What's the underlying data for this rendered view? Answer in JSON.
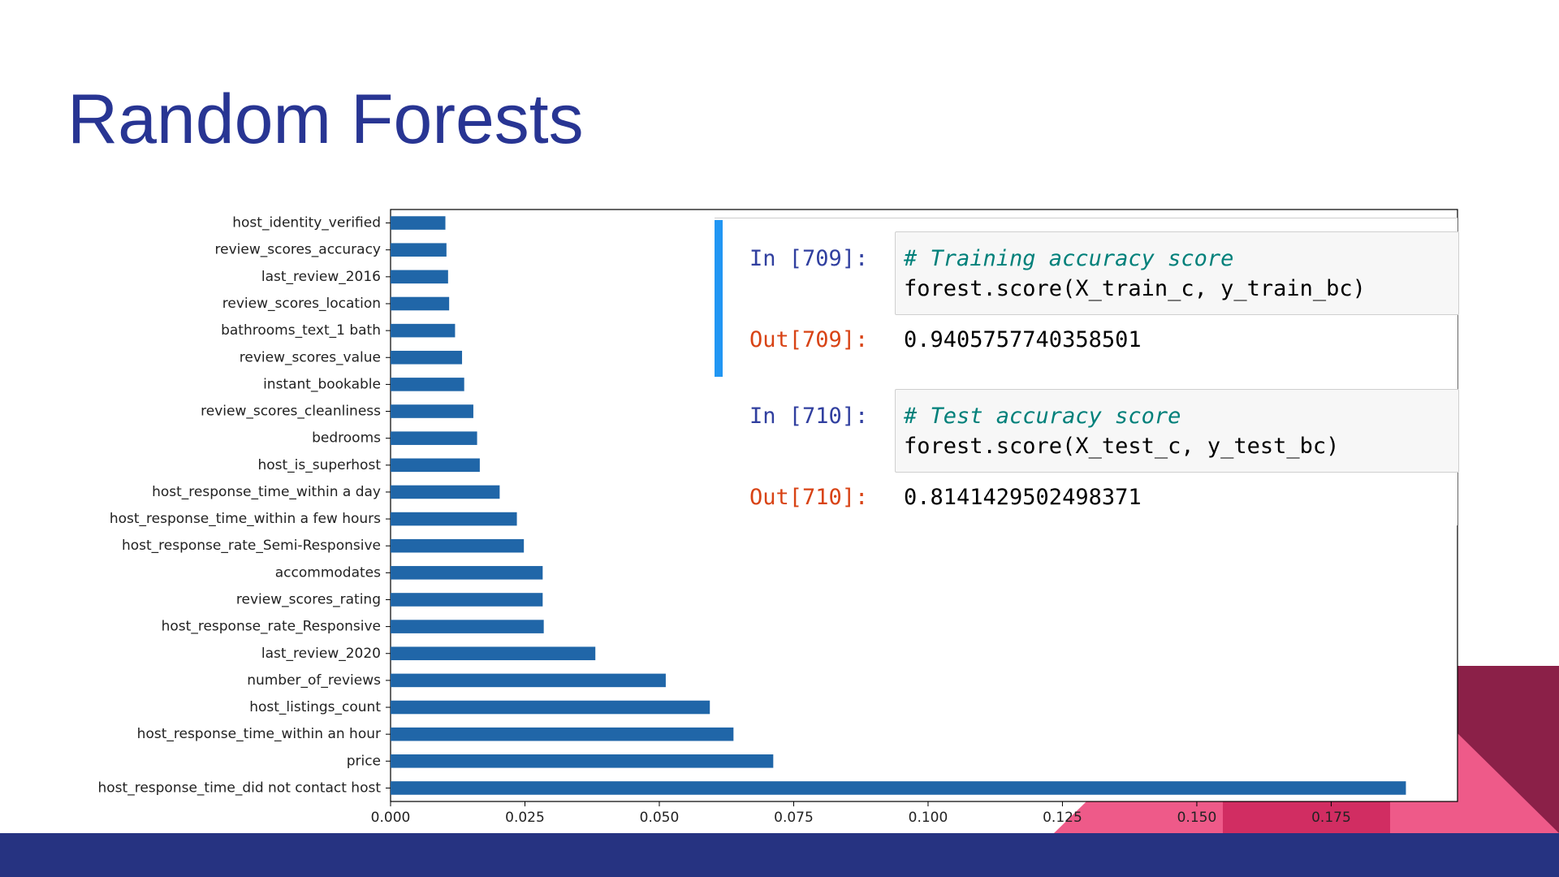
{
  "title": "Random Forests",
  "chart_data": {
    "type": "barh",
    "categories": [
      "host_identity_verified",
      "review_scores_accuracy",
      "last_review_2016",
      "review_scores_location",
      "bathrooms_text_1 bath",
      "review_scores_value",
      "instant_bookable",
      "review_scores_cleanliness",
      "bedrooms",
      "host_is_superhost",
      "host_response_time_within a day",
      "host_response_time_within a few hours",
      "host_response_rate_Semi-Responsive",
      "accommodates",
      "review_scores_rating",
      "host_response_rate_Responsive",
      "last_review_2020",
      "number_of_reviews",
      "host_listings_count",
      "host_response_time_within an hour",
      "price",
      "host_response_time_did not contact host"
    ],
    "values": [
      0.0102,
      0.0104,
      0.0107,
      0.0109,
      0.012,
      0.0133,
      0.0137,
      0.0154,
      0.0161,
      0.0166,
      0.0203,
      0.0235,
      0.0248,
      0.0283,
      0.0283,
      0.0285,
      0.0381,
      0.0512,
      0.0594,
      0.0638,
      0.0712,
      0.1889
    ],
    "color": "#2066a8",
    "xlim": [
      0,
      0.1985
    ],
    "xticks": [
      {
        "value": 0,
        "label": "0.000"
      },
      {
        "value": 0.025,
        "label": "0.025"
      },
      {
        "value": 0.05,
        "label": "0.050"
      },
      {
        "value": 0.075,
        "label": "0.075"
      },
      {
        "value": 0.1,
        "label": "0.100"
      },
      {
        "value": 0.125,
        "label": "0.125"
      },
      {
        "value": 0.15,
        "label": "0.150"
      },
      {
        "value": 0.175,
        "label": "0.175"
      }
    ]
  },
  "notebook": [
    {
      "in_prompt": "In [709]:",
      "comment": "# Training accuracy score",
      "code": "forest.score(X_train_c, y_train_bc)",
      "out_prompt": "Out[709]:",
      "output": "0.9405757740358501"
    },
    {
      "in_prompt": "In [710]:",
      "comment": "# Test accuracy score",
      "code": "forest.score(X_test_c, y_test_bc)",
      "out_prompt": "Out[710]:",
      "output": "0.8141429502498371"
    }
  ]
}
